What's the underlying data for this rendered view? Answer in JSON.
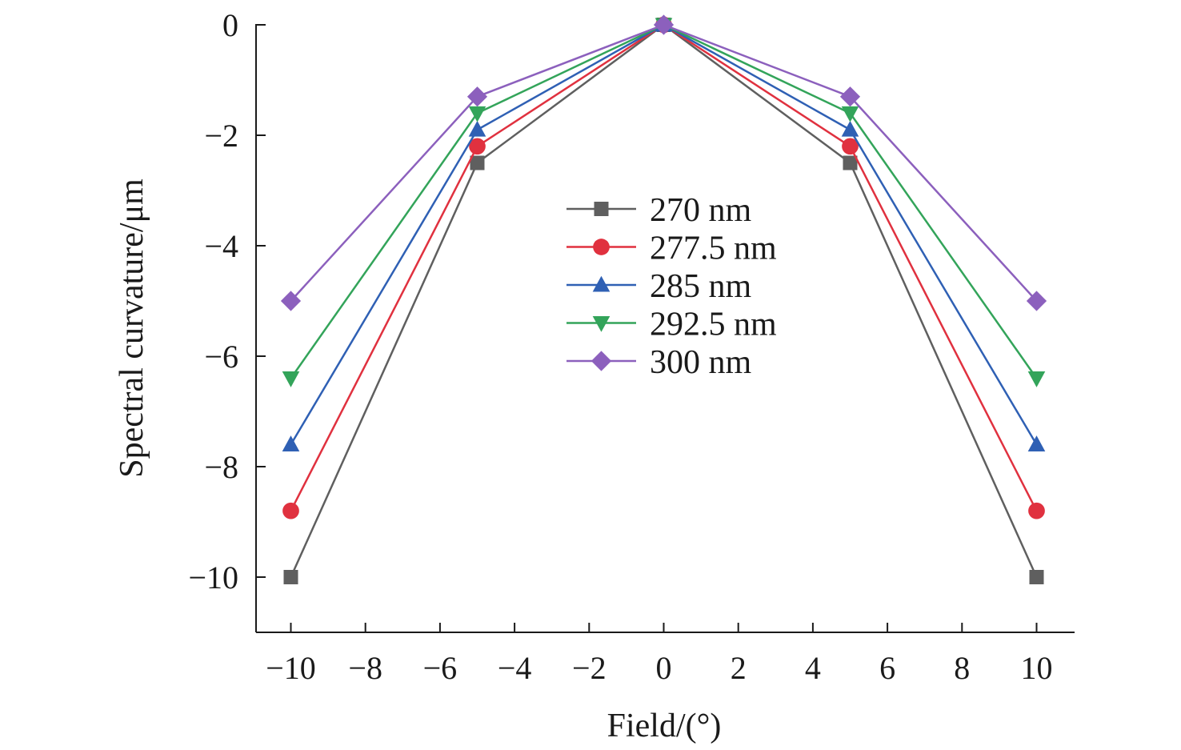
{
  "chart_data": {
    "type": "line",
    "title": "",
    "xlabel": "Field/(°)",
    "ylabel": "Spectral curvature/μm",
    "xlim": [
      -11,
      11
    ],
    "ylim": [
      -11,
      0
    ],
    "xticks": [
      -10,
      -8,
      -6,
      -4,
      -2,
      0,
      2,
      4,
      6,
      8,
      10
    ],
    "xtick_labels": [
      "−10",
      "−8",
      "−6",
      "−4",
      "−2",
      "0",
      "2",
      "4",
      "6",
      "8",
      "10"
    ],
    "yticks": [
      0,
      -2,
      -4,
      -6,
      -8,
      -10
    ],
    "ytick_labels": [
      "0",
      "−2",
      "−4",
      "−6",
      "−8",
      "−10"
    ],
    "grid": false,
    "legend_position": "center",
    "x": [
      -10,
      -5,
      0,
      5,
      10
    ],
    "series": [
      {
        "name": "270 nm",
        "color": "#5f5f5f",
        "marker": "square",
        "values": [
          -10,
          -2.5,
          0,
          -2.5,
          -10
        ]
      },
      {
        "name": "277.5 nm",
        "color": "#e0313f",
        "marker": "circle",
        "values": [
          -8.8,
          -2.2,
          0,
          -2.2,
          -8.8
        ]
      },
      {
        "name": "285 nm",
        "color": "#2f60b4",
        "marker": "triangle-up",
        "values": [
          -7.6,
          -1.9,
          0,
          -1.9,
          -7.6
        ]
      },
      {
        "name": "292.5 nm",
        "color": "#33a45a",
        "marker": "triangle-down",
        "values": [
          -6.4,
          -1.6,
          0,
          -1.6,
          -6.4
        ]
      },
      {
        "name": "300 nm",
        "color": "#8c60bd",
        "marker": "diamond",
        "values": [
          -5,
          -1.3,
          0,
          -1.3,
          -5
        ]
      }
    ]
  }
}
